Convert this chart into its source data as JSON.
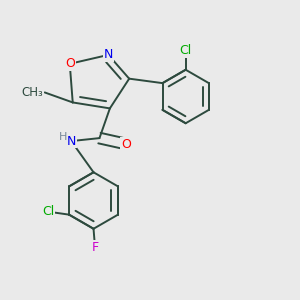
{
  "bg_color": "#eaeaea",
  "bond_color": "#2d4a3e",
  "bond_width": 1.4,
  "atom_colors": {
    "O": "#ff0000",
    "N": "#0000ee",
    "Cl": "#00aa00",
    "F": "#cc00cc",
    "H": "#778899"
  }
}
